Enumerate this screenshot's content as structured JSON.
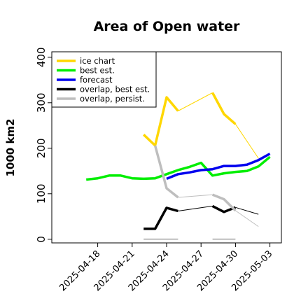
{
  "chart_data": {
    "type": "line",
    "title": "Area of Open water",
    "ylabel": "1000 km2",
    "xlabel": "",
    "ylim": [
      -8,
      412
    ],
    "xlim": [
      "2025-04-14",
      "2025-05-04"
    ],
    "yticks": [
      0,
      100,
      200,
      300,
      400
    ],
    "xticks": [
      {
        "label": "2025-04-18",
        "date": "2025-04-18",
        "color": "#000000"
      },
      {
        "label": "2025-04-21",
        "date": "2025-04-21",
        "color": "#000000"
      },
      {
        "label": "2025-04-24",
        "date": "2025-04-24",
        "color": "#008000"
      },
      {
        "label": "2025-04-27",
        "date": "2025-04-27",
        "color": "#000000"
      },
      {
        "label": "2025-04-30",
        "date": "2025-04-30",
        "color": "#000000"
      },
      {
        "label": "2025-05-03",
        "date": "2025-05-03",
        "color": "#000000"
      }
    ],
    "grid": false,
    "legend_position": "top-left",
    "legend": [
      {
        "label": "ice chart",
        "color": "#ffd700"
      },
      {
        "label": "best est.",
        "color": "#00ee00"
      },
      {
        "label": "forecast",
        "color": "#0000ee"
      },
      {
        "label": "overlap, best est.",
        "color": "#000000"
      },
      {
        "label": "overlap, persist.",
        "color": "#bebebe"
      }
    ],
    "series": [
      {
        "legend_index": 0,
        "color": "#ffd700",
        "width": 3.5,
        "points": [
          [
            "2025-04-22",
            230
          ],
          [
            "2025-04-23",
            206
          ],
          [
            "2025-04-24",
            312
          ],
          [
            "2025-04-25",
            282
          ]
        ]
      },
      {
        "legend_index": 0,
        "color": "#ffd700",
        "width": 1,
        "points": [
          [
            "2025-04-25",
            282
          ],
          [
            "2025-04-28",
            322
          ]
        ]
      },
      {
        "legend_index": 0,
        "color": "#ffd700",
        "width": 3.5,
        "points": [
          [
            "2025-04-28",
            322
          ],
          [
            "2025-04-29",
            275
          ],
          [
            "2025-04-30",
            253
          ]
        ]
      },
      {
        "legend_index": 0,
        "color": "#ffd700",
        "width": 1,
        "points": [
          [
            "2025-04-30",
            253
          ],
          [
            "2025-05-02",
            178
          ]
        ]
      },
      {
        "legend_index": 1,
        "color": "#00ee00",
        "width": 3.5,
        "points": [
          [
            "2025-04-17",
            131
          ],
          [
            "2025-04-18",
            134
          ],
          [
            "2025-04-19",
            140
          ],
          [
            "2025-04-20",
            140
          ],
          [
            "2025-04-21",
            134
          ],
          [
            "2025-04-22",
            133
          ],
          [
            "2025-04-23",
            134
          ],
          [
            "2025-04-24",
            143
          ],
          [
            "2025-04-25",
            152
          ],
          [
            "2025-04-26",
            159
          ],
          [
            "2025-04-27",
            168
          ],
          [
            "2025-04-28",
            140
          ],
          [
            "2025-04-29",
            145
          ],
          [
            "2025-04-30",
            148
          ],
          [
            "2025-05-01",
            150
          ],
          [
            "2025-05-02",
            160
          ],
          [
            "2025-05-03",
            181
          ]
        ]
      },
      {
        "legend_index": 2,
        "color": "#0000ee",
        "width": 3.5,
        "points": [
          [
            "2025-04-24",
            133
          ],
          [
            "2025-04-25",
            143
          ],
          [
            "2025-04-26",
            147
          ],
          [
            "2025-04-27",
            152
          ],
          [
            "2025-04-28",
            154
          ],
          [
            "2025-04-29",
            161
          ],
          [
            "2025-04-30",
            161
          ],
          [
            "2025-05-01",
            164
          ],
          [
            "2025-05-02",
            174
          ],
          [
            "2025-05-03",
            188
          ]
        ]
      },
      {
        "legend_index": 3,
        "color": "#000000",
        "width": 3.5,
        "points": [
          [
            "2025-04-22",
            23
          ],
          [
            "2025-04-23",
            23
          ],
          [
            "2025-04-24",
            69
          ],
          [
            "2025-04-25",
            62
          ]
        ]
      },
      {
        "legend_index": 3,
        "color": "#000000",
        "width": 1,
        "points": [
          [
            "2025-04-25",
            62
          ],
          [
            "2025-04-28",
            73
          ]
        ]
      },
      {
        "legend_index": 3,
        "color": "#000000",
        "width": 3.5,
        "points": [
          [
            "2025-04-28",
            73
          ],
          [
            "2025-04-29",
            60
          ],
          [
            "2025-04-30",
            70
          ]
        ]
      },
      {
        "legend_index": 3,
        "color": "#000000",
        "width": 1,
        "points": [
          [
            "2025-04-30",
            70
          ],
          [
            "2025-05-02",
            55
          ]
        ]
      },
      {
        "legend_index": 4,
        "color": "#bebebe",
        "width": 3.5,
        "points": [
          [
            "2025-04-23",
            206
          ],
          [
            "2025-04-24",
            112
          ],
          [
            "2025-04-25",
            92
          ]
        ]
      },
      {
        "legend_index": 4,
        "color": "#bebebe",
        "width": 1,
        "points": [
          [
            "2025-04-25",
            92
          ],
          [
            "2025-04-28",
            98
          ]
        ]
      },
      {
        "legend_index": 4,
        "color": "#bebebe",
        "width": 3.5,
        "points": [
          [
            "2025-04-28",
            98
          ],
          [
            "2025-04-29",
            88
          ],
          [
            "2025-04-30",
            63
          ]
        ]
      },
      {
        "legend_index": 4,
        "color": "#bebebe",
        "width": 1,
        "points": [
          [
            "2025-04-30",
            63
          ],
          [
            "2025-05-02",
            28
          ]
        ]
      },
      {
        "legend_index": 4,
        "color": "#bebebe",
        "width": 2,
        "points": [
          [
            "2025-04-22",
            0
          ],
          [
            "2025-04-25",
            0
          ]
        ]
      },
      {
        "legend_index": 4,
        "color": "#bebebe",
        "width": 2,
        "points": [
          [
            "2025-04-28",
            0
          ],
          [
            "2025-04-30",
            0
          ]
        ]
      }
    ]
  }
}
